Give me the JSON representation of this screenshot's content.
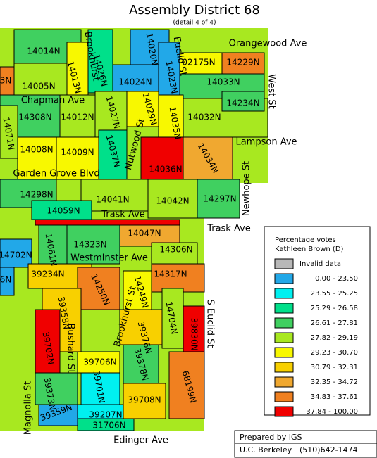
{
  "header": {
    "title": "Assembly District 68",
    "subtitle": "(detail 4 of 4)"
  },
  "precincts": [
    {
      "label": "14014N",
      "color": "#40d060"
    },
    {
      "label": "14005N",
      "color": "#a8e820"
    },
    {
      "label": "14013N",
      "color": "#f8f800"
    },
    {
      "label": "14026N",
      "color": "#00e08a"
    },
    {
      "label": "14020N",
      "color": "#22a8e8"
    },
    {
      "label": "14024N",
      "color": "#22a8e8"
    },
    {
      "label": "14023N",
      "color": "#22a8e8"
    },
    {
      "label": "02175N",
      "color": "#f8f800"
    },
    {
      "label": "14033N",
      "color": "#40d060"
    },
    {
      "label": "14229N",
      "color": "#f08020"
    },
    {
      "label": "14308N",
      "color": "#40d060"
    },
    {
      "label": "14012N",
      "color": "#a8e820"
    },
    {
      "label": "14027N",
      "color": "#a8e820"
    },
    {
      "label": "14029N",
      "color": "#f8f800"
    },
    {
      "label": "14035N",
      "color": "#f8f800"
    },
    {
      "label": "14032N",
      "color": "#a8e820"
    },
    {
      "label": "14234N",
      "color": "#40d060"
    },
    {
      "label": "14071N",
      "color": "#a8e820"
    },
    {
      "label": "14008N",
      "color": "#f8f800"
    },
    {
      "label": "14009N",
      "color": "#f8f800"
    },
    {
      "label": "14037N",
      "color": "#00e08a"
    },
    {
      "label": "14036N",
      "color": "#f00000"
    },
    {
      "label": "14034N",
      "color": "#f0a830"
    },
    {
      "label": "14298N",
      "color": "#40d060"
    },
    {
      "label": "14041N",
      "color": "#a8e820"
    },
    {
      "label": "14042N",
      "color": "#a8e820"
    },
    {
      "label": "14297N",
      "color": "#40d060"
    },
    {
      "label": "14059N",
      "color": "#00e08a"
    },
    {
      "label": "14061N",
      "color": "#40d060"
    },
    {
      "label": "14323N",
      "color": "#40d060"
    },
    {
      "label": "14047N",
      "color": "#f0a830"
    },
    {
      "label": "14306N",
      "color": "#a8e820"
    },
    {
      "label": "14702N",
      "color": "#22a8e8"
    },
    {
      "label": "39234N",
      "color": "#f8d000"
    },
    {
      "label": "14250N",
      "color": "#f08020"
    },
    {
      "label": "14249N",
      "color": "#f8f800"
    },
    {
      "label": "14317N",
      "color": "#f08020"
    },
    {
      "label": "39358N",
      "color": "#f8d000"
    },
    {
      "label": "39702N",
      "color": "#f00000"
    },
    {
      "label": "39376N",
      "color": "#f8d000"
    },
    {
      "label": "14704N",
      "color": "#a8e820"
    },
    {
      "label": "39830N",
      "color": "#f00000"
    },
    {
      "label": "39706N",
      "color": "#f8f800"
    },
    {
      "label": "39378N",
      "color": "#40d060"
    },
    {
      "label": "39701N",
      "color": "#00f0f0"
    },
    {
      "label": "39373N",
      "color": "#40d060"
    },
    {
      "label": "39359N",
      "color": "#22a8e8"
    },
    {
      "label": "39207N",
      "color": "#00f0f0"
    },
    {
      "label": "39708N",
      "color": "#f8d000"
    },
    {
      "label": "68199N",
      "color": "#f08020"
    },
    {
      "label": "31706N",
      "color": "#00e08a"
    },
    {
      "label": "3N",
      "color": "#f08020"
    },
    {
      "label": "6N",
      "color": "#22a8e8"
    }
  ],
  "streets": [
    "Orangewood Ave",
    "West St",
    "Chapman Ave",
    "Lampson Ave",
    "Garden Grove Blvd",
    "Newhope St",
    "Trask Ave",
    "Trask Ave",
    "Westminster Ave",
    "S Euclid St",
    "Magnolia St",
    "Bushard St",
    "Brookhurst St",
    "Nutwood St",
    "Edinger Ave",
    "Brookhurst",
    "Euclid St"
  ],
  "legend": {
    "title": [
      "Percentage votes",
      "Kathleen Brown (D)"
    ],
    "entries": [
      {
        "label": "Invalid data",
        "color": "#b8b8b8"
      },
      {
        "label": "0.00 - 23.50",
        "color": "#22a8e8"
      },
      {
        "label": "23.55 - 25.25",
        "color": "#00f0f0"
      },
      {
        "label": "25.29 - 26.58",
        "color": "#00e08a"
      },
      {
        "label": "26.61 - 27.81",
        "color": "#40d060"
      },
      {
        "label": "27.82 - 29.19",
        "color": "#a8e820"
      },
      {
        "label": "29.23 - 30.70",
        "color": "#f8f800"
      },
      {
        "label": "30.79 - 32.31",
        "color": "#f8d000"
      },
      {
        "label": "32.35 - 34.72",
        "color": "#f0a830"
      },
      {
        "label": "34.83 - 37.61",
        "color": "#f08020"
      },
      {
        "label": "37.84 - 100.00",
        "color": "#f00000"
      }
    ]
  },
  "footer": {
    "prepared": "Prepared by IGS",
    "org": "U.C. Berkeley",
    "phone": "(510)642-1474"
  }
}
